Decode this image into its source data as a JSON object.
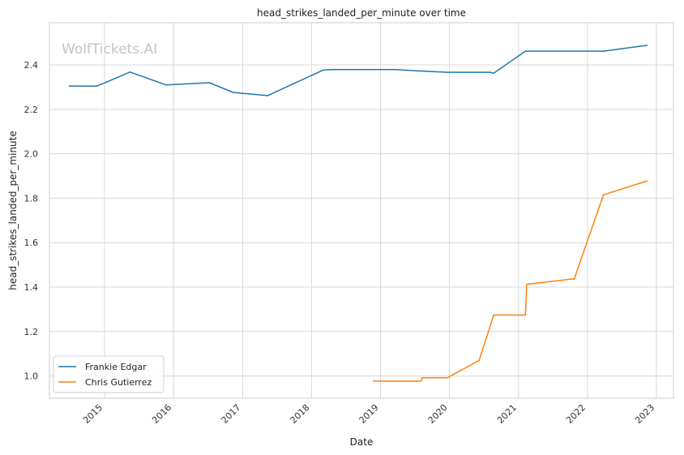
{
  "chart_data": {
    "type": "line",
    "title": "head_strikes_landed_per_minute over time",
    "xlabel": "Date",
    "ylabel": "head_strikes_landed_per_minute",
    "watermark": "WolfTickets.AI",
    "x_axis": "date",
    "xlim": [
      "2014-03-15",
      "2023-04-01"
    ],
    "ylim": [
      0.9,
      2.59
    ],
    "x_ticks": [
      "2015-01-01",
      "2016-01-01",
      "2017-01-01",
      "2018-01-01",
      "2019-01-01",
      "2020-01-01",
      "2021-01-01",
      "2022-01-01",
      "2023-01-01"
    ],
    "x_tick_labels": [
      "2015",
      "2016",
      "2017",
      "2018",
      "2019",
      "2020",
      "2021",
      "2022",
      "2023"
    ],
    "y_ticks": [
      1.0,
      1.2,
      1.4,
      1.6,
      1.8,
      2.0,
      2.2,
      2.4
    ],
    "y_tick_labels": [
      "1.0",
      "1.2",
      "1.4",
      "1.6",
      "1.8",
      "2.0",
      "2.2",
      "2.4"
    ],
    "grid": true,
    "legend_position": "bottom-left",
    "series": [
      {
        "name": "Frankie Edgar",
        "color": "#1f77b4",
        "points": [
          {
            "x": "2014-06-28",
            "y": 2.305
          },
          {
            "x": "2014-11-22",
            "y": 2.305
          },
          {
            "x": "2015-05-16",
            "y": 2.368
          },
          {
            "x": "2015-11-21",
            "y": 2.31
          },
          {
            "x": "2016-07-09",
            "y": 2.32
          },
          {
            "x": "2016-11-12",
            "y": 2.276
          },
          {
            "x": "2017-05-13",
            "y": 2.262
          },
          {
            "x": "2018-03-03",
            "y": 2.377
          },
          {
            "x": "2018-04-21",
            "y": 2.379
          },
          {
            "x": "2019-03-23",
            "y": 2.379
          },
          {
            "x": "2019-07-27",
            "y": 2.373
          },
          {
            "x": "2019-12-21",
            "y": 2.367
          },
          {
            "x": "2020-08-01",
            "y": 2.367
          },
          {
            "x": "2020-08-22",
            "y": 2.363
          },
          {
            "x": "2021-02-06",
            "y": 2.462
          },
          {
            "x": "2022-03-26",
            "y": 2.462
          },
          {
            "x": "2022-11-12",
            "y": 2.488
          }
        ]
      },
      {
        "name": "Chris Gutierrez",
        "color": "#ff7f0e",
        "points": [
          {
            "x": "2018-11-24",
            "y": 0.977
          },
          {
            "x": "2019-08-03",
            "y": 0.977
          },
          {
            "x": "2019-08-10",
            "y": 0.992
          },
          {
            "x": "2019-12-21",
            "y": 0.992
          },
          {
            "x": "2020-06-06",
            "y": 1.07
          },
          {
            "x": "2020-08-22",
            "y": 1.274
          },
          {
            "x": "2021-02-06",
            "y": 1.274
          },
          {
            "x": "2021-02-13",
            "y": 1.413
          },
          {
            "x": "2021-10-16",
            "y": 1.437
          },
          {
            "x": "2021-10-23",
            "y": 1.437
          },
          {
            "x": "2022-03-26",
            "y": 1.815
          },
          {
            "x": "2022-11-12",
            "y": 1.878
          }
        ]
      }
    ]
  }
}
